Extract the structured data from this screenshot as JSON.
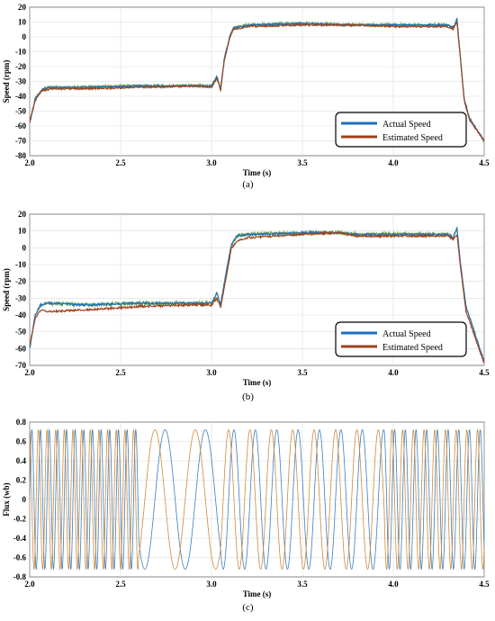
{
  "colors": {
    "actual": "#1f6fbf",
    "estimated": "#a0401a",
    "green": "#5a9a2a",
    "flux_a": "#3a7fc0",
    "flux_b": "#d08a3a",
    "grid": "#d9d9d9"
  },
  "chart_data": [
    {
      "type": "line",
      "caption": "(a)",
      "xlabel": "Time (s)",
      "ylabel": "Speed (rpm)",
      "xlim": [
        2.0,
        4.5
      ],
      "ylim": [
        -80,
        20
      ],
      "xticks": [
        "2.0",
        "2.5",
        "3.0",
        "3.5",
        "4.0",
        "4.5"
      ],
      "yticks": [
        "20",
        "10",
        "0",
        "-10",
        "-20",
        "-30",
        "-40",
        "-50",
        "-60",
        "-70",
        "-80"
      ],
      "grid": true,
      "legend_position": "bottom-right",
      "series": [
        {
          "name": "Actual Speed",
          "x": [
            2.0,
            2.03,
            2.07,
            2.12,
            2.3,
            2.6,
            2.9,
            3.0,
            3.03,
            3.05,
            3.07,
            3.1,
            3.12,
            3.2,
            3.5,
            3.8,
            4.0,
            4.3,
            4.33,
            4.35,
            4.37,
            4.39,
            4.42,
            4.5
          ],
          "y": [
            -57,
            -42,
            -35,
            -34,
            -34,
            -33,
            -33,
            -33,
            -27,
            -35,
            -15,
            0,
            6,
            8,
            9,
            8,
            8,
            8,
            6,
            12,
            -15,
            -42,
            -55,
            -70
          ]
        },
        {
          "name": "Estimated Speed",
          "x": [
            2.0,
            2.03,
            2.07,
            2.12,
            2.3,
            2.6,
            2.9,
            3.0,
            3.03,
            3.05,
            3.07,
            3.1,
            3.12,
            3.2,
            3.5,
            3.8,
            4.0,
            4.3,
            4.33,
            4.35,
            4.37,
            4.39,
            4.42,
            4.5
          ],
          "y": [
            -58,
            -43,
            -36,
            -35,
            -35,
            -34,
            -33,
            -34,
            -28,
            -36,
            -16,
            -1,
            5,
            7,
            8,
            8,
            7,
            7,
            5,
            10,
            -16,
            -43,
            -56,
            -70
          ]
        }
      ]
    },
    {
      "type": "line",
      "caption": "(b)",
      "xlabel": "Time (s)",
      "ylabel": "Speed (rpm)",
      "xlim": [
        2.0,
        4.5
      ],
      "ylim": [
        -70,
        20
      ],
      "xticks": [
        "2.0",
        "2.5",
        "3.0",
        "3.5",
        "4.0",
        "4.5"
      ],
      "yticks": [
        "20",
        "10",
        "0",
        "-10",
        "-20",
        "-30",
        "-40",
        "-50",
        "-60",
        "-70"
      ],
      "grid": true,
      "legend_position": "bottom-right",
      "series": [
        {
          "name": "Actual Speed",
          "x": [
            2.0,
            2.03,
            2.06,
            2.1,
            2.3,
            2.6,
            2.9,
            3.0,
            3.03,
            3.05,
            3.08,
            3.11,
            3.14,
            3.2,
            3.5,
            3.7,
            3.8,
            4.0,
            4.3,
            4.33,
            4.35,
            4.37,
            4.4,
            4.5
          ],
          "y": [
            -60,
            -40,
            -34,
            -33,
            -34,
            -33,
            -33,
            -33,
            -27,
            -34,
            -15,
            2,
            7,
            8,
            9,
            9,
            8,
            8,
            8,
            6,
            12,
            -10,
            -35,
            -68
          ]
        },
        {
          "name": "Estimated Speed",
          "x": [
            2.0,
            2.03,
            2.06,
            2.1,
            2.3,
            2.6,
            2.9,
            3.0,
            3.03,
            3.05,
            3.08,
            3.11,
            3.14,
            3.2,
            3.5,
            3.7,
            3.8,
            4.0,
            4.3,
            4.33,
            4.35,
            4.37,
            4.4,
            4.5
          ],
          "y": [
            -58,
            -42,
            -37,
            -38,
            -37,
            -35,
            -34,
            -34,
            -30,
            -36,
            -18,
            0,
            4,
            6,
            8,
            9,
            7,
            7,
            7,
            5,
            8,
            -12,
            -38,
            -69
          ]
        }
      ]
    },
    {
      "type": "line",
      "caption": "(c)",
      "xlabel": "Time (s)",
      "ylabel": "Flux (wb)",
      "xlim": [
        2.0,
        4.5
      ],
      "ylim": [
        -0.8,
        0.8
      ],
      "xticks": [
        "2.0",
        "2.5",
        "3.0",
        "3.5",
        "4.0",
        "4.5"
      ],
      "yticks": [
        "0.8",
        "0.6",
        "0.4",
        "0.2",
        "0",
        "-0.2",
        "-0.4",
        "-0.6",
        "-0.8"
      ],
      "grid": true,
      "amplitude": 0.72,
      "segments": [
        {
          "t_start": 2.0,
          "t_end": 2.6,
          "freq_hz": 21
        },
        {
          "t_start": 2.6,
          "t_end": 3.05,
          "freq_hz": 4.5
        },
        {
          "t_start": 3.05,
          "t_end": 3.95,
          "freq_hz": 8.5
        },
        {
          "t_start": 3.95,
          "t_end": 4.5,
          "freq_hz": 17
        }
      ]
    }
  ]
}
